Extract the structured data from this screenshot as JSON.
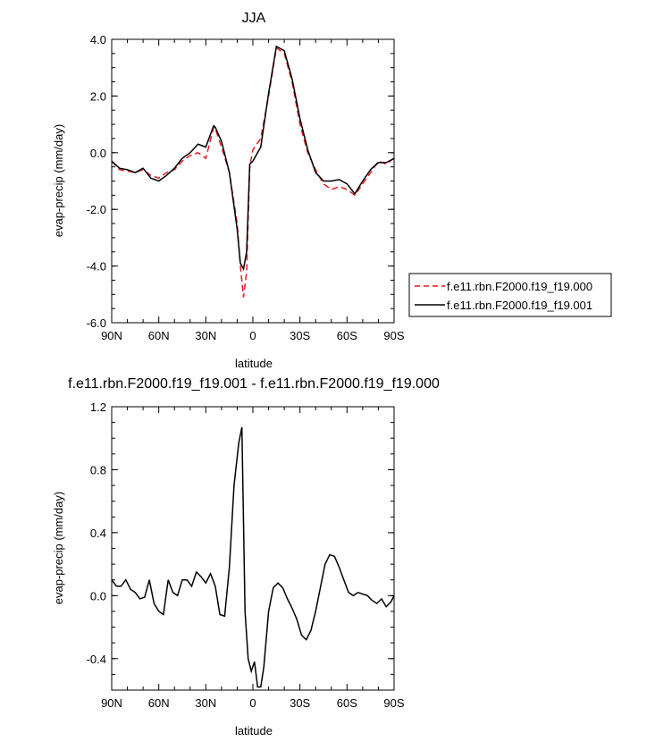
{
  "chart_data": [
    {
      "type": "line",
      "title": "JJA",
      "xlabel": "latitude",
      "ylabel": "evap-precip (mm/day)",
      "xlim": [
        90,
        -90
      ],
      "ylim": [
        -6,
        4
      ],
      "xticks": [
        {
          "value": 90,
          "label": "90N"
        },
        {
          "value": 60,
          "label": "60N"
        },
        {
          "value": 30,
          "label": "30N"
        },
        {
          "value": 0,
          "label": "0"
        },
        {
          "value": -30,
          "label": "30S"
        },
        {
          "value": -60,
          "label": "60S"
        },
        {
          "value": -90,
          "label": "90S"
        }
      ],
      "yticks": [
        {
          "value": 4,
          "label": "4.0"
        },
        {
          "value": 2,
          "label": "2.0"
        },
        {
          "value": 0,
          "label": "0.0"
        },
        {
          "value": -2,
          "label": "-2.0"
        },
        {
          "value": -4,
          "label": "-4.0"
        },
        {
          "value": -6,
          "label": "-6.0"
        }
      ],
      "legend_position": "outside-right",
      "x": [
        90,
        85,
        80,
        75,
        70,
        65,
        60,
        55,
        50,
        45,
        40,
        35,
        30,
        25,
        24,
        20,
        15,
        10,
        8,
        6,
        4,
        2,
        0,
        -5,
        -10,
        -15,
        -20,
        -25,
        -30,
        -35,
        -40,
        -45,
        -50,
        -55,
        -60,
        -65,
        -70,
        -75,
        -80,
        -85,
        -90
      ],
      "series": [
        {
          "name": "f.e11.rbn.F2000.f19_f19.000",
          "color": "#e41a1c",
          "dash": "dashed",
          "values": [
            -0.3,
            -0.6,
            -0.65,
            -0.7,
            -0.6,
            -0.8,
            -0.9,
            -0.7,
            -0.6,
            -0.3,
            -0.1,
            0.0,
            -0.2,
            0.9,
            0.85,
            0.2,
            -0.7,
            -2.5,
            -4.0,
            -5.1,
            -4.2,
            -0.5,
            0.1,
            0.5,
            2.0,
            3.7,
            3.5,
            2.5,
            1.0,
            0.0,
            -0.6,
            -1.1,
            -1.3,
            -1.2,
            -1.3,
            -1.5,
            -1.1,
            -0.7,
            -0.3,
            -0.4,
            -0.2
          ]
        },
        {
          "name": "f.e11.rbn.F2000.f19_f19.001",
          "color": "#000000",
          "dash": "solid",
          "values": [
            -0.3,
            -0.55,
            -0.6,
            -0.7,
            -0.55,
            -0.9,
            -1.0,
            -0.8,
            -0.55,
            -0.2,
            0.0,
            0.3,
            0.2,
            0.95,
            0.9,
            0.4,
            -0.7,
            -2.7,
            -3.9,
            -4.1,
            -3.5,
            -0.4,
            -0.3,
            0.2,
            2.1,
            3.75,
            3.6,
            2.6,
            1.2,
            0.1,
            -0.7,
            -1.0,
            -1.0,
            -0.95,
            -1.1,
            -1.45,
            -1.0,
            -0.6,
            -0.35,
            -0.35,
            -0.2
          ]
        }
      ]
    },
    {
      "type": "line",
      "title": "f.e11.rbn.F2000.f19_f19.001 - f.e11.rbn.F2000.f19_f19.000",
      "xlabel": "latitude",
      "ylabel": "evap-precip (mm/day)",
      "xlim": [
        90,
        -90
      ],
      "ylim": [
        -0.6,
        1.2
      ],
      "xticks": [
        {
          "value": 90,
          "label": "90N"
        },
        {
          "value": 60,
          "label": "60N"
        },
        {
          "value": 30,
          "label": "30N"
        },
        {
          "value": 0,
          "label": "0"
        },
        {
          "value": -30,
          "label": "30S"
        },
        {
          "value": -60,
          "label": "60S"
        },
        {
          "value": -90,
          "label": "90S"
        }
      ],
      "yticks": [
        {
          "value": 1.2,
          "label": "1.2"
        },
        {
          "value": 0.8,
          "label": "0.8"
        },
        {
          "value": 0.4,
          "label": "0.4"
        },
        {
          "value": 0.0,
          "label": "0.0"
        },
        {
          "value": -0.4,
          "label": "-0.4"
        }
      ],
      "x": [
        90,
        87,
        84,
        81,
        78,
        75,
        72,
        69,
        66,
        63,
        60,
        57,
        54,
        51,
        48,
        45,
        42,
        39,
        36,
        33,
        30,
        27,
        24,
        21,
        18,
        15,
        12,
        9,
        7,
        5,
        3,
        1,
        -1,
        -3,
        -5,
        -7,
        -10,
        -13,
        -16,
        -19,
        -22,
        -25,
        -28,
        -31,
        -34,
        -37,
        -40,
        -43,
        -46,
        -49,
        -52,
        -55,
        -58,
        -61,
        -64,
        -67,
        -70,
        -73,
        -76,
        -79,
        -82,
        -85,
        -88,
        -90
      ],
      "series": [
        {
          "name": "",
          "color": "#000000",
          "dash": "solid",
          "values": [
            0.1,
            0.06,
            0.06,
            0.1,
            0.04,
            0.02,
            -0.02,
            -0.01,
            0.1,
            -0.05,
            -0.1,
            -0.12,
            0.1,
            0.02,
            0.0,
            0.1,
            0.1,
            0.06,
            0.15,
            0.12,
            0.08,
            0.14,
            0.06,
            -0.12,
            -0.13,
            0.18,
            0.7,
            0.97,
            1.07,
            -0.1,
            -0.4,
            -0.48,
            -0.42,
            -0.58,
            -0.58,
            -0.45,
            -0.1,
            0.05,
            0.08,
            0.05,
            -0.02,
            -0.08,
            -0.15,
            -0.25,
            -0.28,
            -0.22,
            -0.1,
            0.05,
            0.2,
            0.26,
            0.25,
            0.18,
            0.1,
            0.02,
            0.0,
            0.02,
            0.01,
            0.0,
            -0.03,
            -0.05,
            -0.02,
            -0.07,
            -0.04,
            0.0
          ]
        }
      ]
    }
  ]
}
